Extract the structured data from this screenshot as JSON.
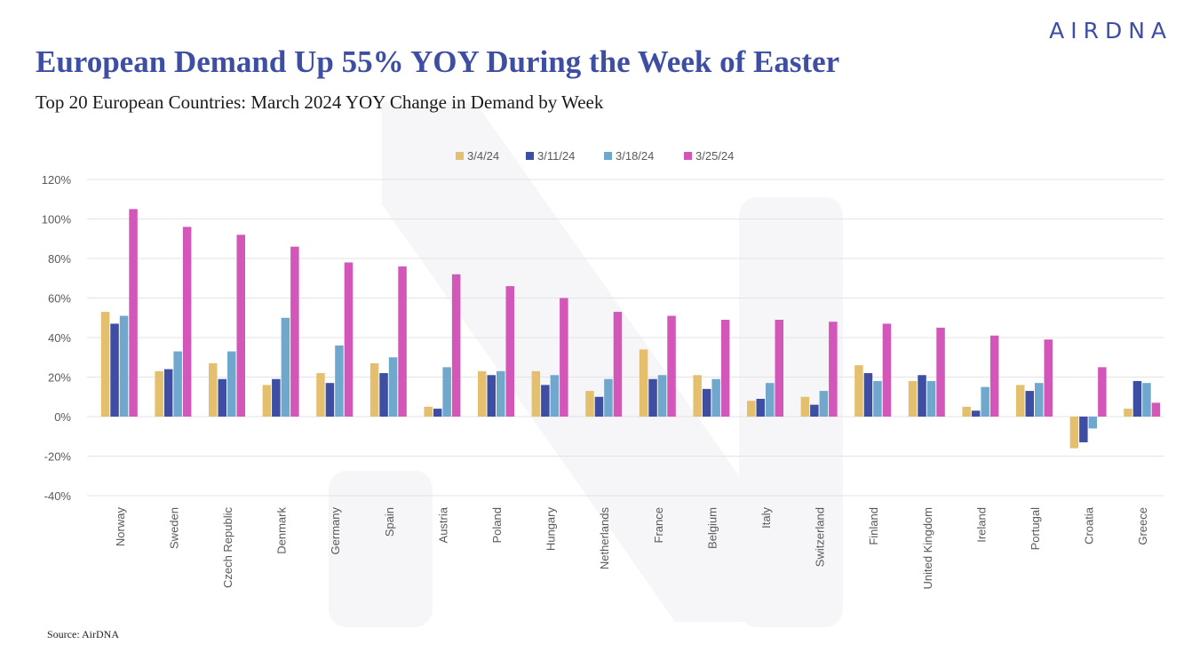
{
  "header": {
    "logo": "AIRDNA",
    "title": "European Demand Up 55% YOY During the Week of Easter",
    "subtitle": "Top 20 European Countries: March 2024 YOY Change in Demand by Week"
  },
  "footer": {
    "source": "Source: AirDNA"
  },
  "chart_data": {
    "type": "bar",
    "title": "European Demand Up 55% YOY During the Week of Easter",
    "subtitle": "Top 20 European Countries: March 2024 YOY Change in Demand by Week",
    "xlabel": "",
    "ylabel": "",
    "ylim": [
      -40,
      120
    ],
    "yticks": [
      120,
      100,
      80,
      60,
      40,
      20,
      0,
      -20,
      -40
    ],
    "ytick_labels": [
      "120%",
      "100%",
      "80%",
      "60%",
      "40%",
      "20%",
      "0%",
      "-20%",
      "-40%"
    ],
    "grid": true,
    "legend_position": "top-center",
    "categories": [
      "Norway",
      "Sweden",
      "Czech Republic",
      "Denmark",
      "Germany",
      "Spain",
      "Austria",
      "Poland",
      "Hungary",
      "Netherlands",
      "France",
      "Belgium",
      "Italy",
      "Switzerland",
      "Finland",
      "United Kingdom",
      "Ireland",
      "Portugal",
      "Croatia",
      "Greece"
    ],
    "series": [
      {
        "name": "3/4/24",
        "color": "#e4c06e",
        "values": [
          53,
          23,
          27,
          16,
          22,
          27,
          5,
          23,
          23,
          13,
          34,
          21,
          8,
          10,
          26,
          18,
          5,
          16,
          -16,
          4
        ]
      },
      {
        "name": "3/11/24",
        "color": "#3d4ea3",
        "values": [
          47,
          24,
          19,
          19,
          17,
          22,
          4,
          21,
          16,
          10,
          19,
          14,
          9,
          6,
          22,
          21,
          3,
          13,
          -13,
          18
        ]
      },
      {
        "name": "3/18/24",
        "color": "#6fa8cc",
        "values": [
          51,
          33,
          33,
          50,
          36,
          30,
          25,
          23,
          21,
          19,
          21,
          19,
          17,
          13,
          18,
          18,
          15,
          17,
          -6,
          17
        ]
      },
      {
        "name": "3/25/24",
        "color": "#d257b9",
        "values": [
          105,
          96,
          92,
          86,
          78,
          76,
          72,
          66,
          60,
          53,
          51,
          49,
          49,
          48,
          47,
          45,
          41,
          39,
          25,
          7
        ]
      }
    ]
  }
}
